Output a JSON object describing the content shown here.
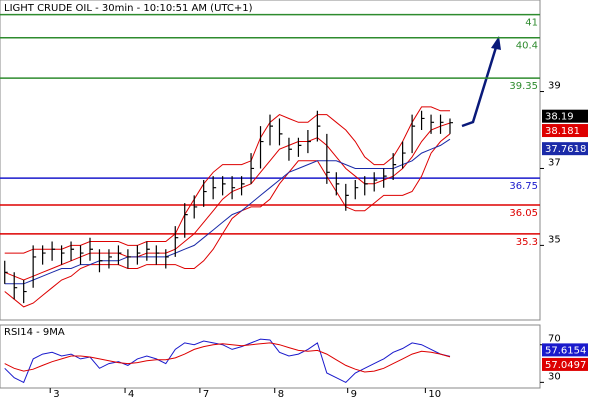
{
  "chart_data": [
    {
      "type": "ohlc",
      "title": "LIGHT CRUDE OIL - 30min - 10:10:51 AM (UTC+1)",
      "xlim": [
        -0.5,
        56.5
      ],
      "ylim": [
        33.06,
        41.38
      ],
      "yticks": [
        35,
        37,
        39
      ],
      "bar_color": "#000000",
      "high": [
        34.6,
        34.3,
        34.1,
        35.0,
        35.0,
        35.1,
        35.0,
        35.1,
        35.0,
        35.2,
        34.9,
        34.9,
        35.0,
        34.9,
        35.0,
        35.1,
        35.0,
        34.9,
        35.5,
        36.1,
        36.3,
        36.7,
        36.8,
        36.8,
        36.8,
        36.8,
        37.4,
        38.1,
        38.4,
        38.3,
        37.8,
        37.8,
        38.0,
        38.5,
        37.9,
        36.9,
        36.6,
        36.7,
        36.8,
        36.9,
        37.0,
        37.4,
        37.7,
        38.4,
        38.5,
        38.4,
        38.4,
        38.3
      ],
      "low": [
        34.0,
        33.6,
        33.5,
        33.9,
        34.5,
        34.6,
        34.5,
        34.6,
        34.5,
        34.6,
        34.3,
        34.4,
        34.5,
        34.4,
        34.5,
        34.6,
        34.5,
        34.4,
        34.7,
        35.2,
        35.7,
        36.0,
        36.2,
        36.3,
        36.2,
        36.3,
        36.6,
        37.0,
        37.6,
        37.6,
        37.2,
        37.3,
        37.4,
        37.7,
        36.6,
        36.3,
        35.9,
        36.2,
        36.3,
        36.4,
        36.5,
        36.7,
        37.0,
        37.4,
        38.0,
        37.9,
        37.9,
        37.9
      ],
      "close": [
        34.3,
        33.9,
        33.8,
        34.7,
        34.8,
        34.9,
        34.8,
        34.9,
        34.8,
        34.9,
        34.6,
        34.7,
        34.8,
        34.7,
        34.8,
        34.9,
        34.8,
        34.7,
        35.2,
        35.8,
        36.0,
        36.4,
        36.5,
        36.6,
        36.5,
        36.6,
        37.0,
        37.7,
        38.1,
        37.9,
        37.5,
        37.6,
        37.7,
        38.1,
        36.9,
        36.6,
        36.3,
        36.5,
        36.6,
        36.7,
        36.8,
        37.1,
        37.4,
        38.1,
        38.3,
        38.2,
        38.2,
        38.19
      ],
      "series": [
        {
          "color": "#dd0000",
          "values": [
            34.8,
            34.8,
            34.8,
            34.9,
            34.9,
            34.9,
            34.9,
            35.0,
            35.0,
            35.1,
            35.1,
            35.1,
            35.1,
            35.0,
            35.0,
            35.1,
            35.1,
            35.1,
            35.3,
            35.8,
            36.2,
            36.6,
            36.9,
            37.1,
            37.1,
            37.1,
            37.2,
            37.8,
            38.2,
            38.4,
            38.3,
            38.2,
            38.2,
            38.4,
            38.4,
            38.2,
            38.0,
            37.7,
            37.3,
            37.1,
            37.1,
            37.3,
            37.7,
            38.2,
            38.6,
            38.6,
            38.5,
            38.5
          ]
        },
        {
          "color": "#dd0000",
          "values": [
            34.3,
            34.2,
            34.1,
            34.2,
            34.3,
            34.4,
            34.5,
            34.6,
            34.7,
            34.8,
            34.8,
            34.8,
            34.8,
            34.7,
            34.7,
            34.8,
            34.8,
            34.8,
            34.9,
            35.1,
            35.3,
            35.6,
            35.9,
            36.2,
            36.4,
            36.5,
            36.6,
            36.9,
            37.2,
            37.5,
            37.6,
            37.7,
            37.7,
            37.8,
            37.6,
            37.3,
            37.0,
            36.8,
            36.6,
            36.6,
            36.7,
            36.8,
            37.0,
            37.3,
            37.7,
            38.0,
            38.1,
            38.181
          ]
        },
        {
          "color": "#dd0000",
          "values": [
            33.8,
            33.6,
            33.4,
            33.5,
            33.7,
            33.9,
            34.1,
            34.2,
            34.4,
            34.5,
            34.5,
            34.5,
            34.5,
            34.4,
            34.4,
            34.5,
            34.5,
            34.5,
            34.5,
            34.4,
            34.4,
            34.6,
            34.9,
            35.3,
            35.7,
            35.9,
            36.0,
            36.0,
            36.2,
            36.6,
            36.9,
            37.2,
            37.2,
            37.2,
            36.8,
            36.4,
            36.0,
            35.9,
            35.9,
            36.1,
            36.3,
            36.3,
            36.3,
            36.4,
            36.8,
            37.4,
            37.7,
            37.9
          ]
        },
        {
          "color": "#1a2aa8",
          "values": [
            34.0,
            34.0,
            34.0,
            34.1,
            34.2,
            34.3,
            34.4,
            34.4,
            34.5,
            34.5,
            34.6,
            34.6,
            34.6,
            34.7,
            34.7,
            34.7,
            34.7,
            34.7,
            34.8,
            34.9,
            35.0,
            35.2,
            35.4,
            35.6,
            35.8,
            35.9,
            36.1,
            36.3,
            36.5,
            36.7,
            36.9,
            37.0,
            37.1,
            37.2,
            37.2,
            37.2,
            37.1,
            37.0,
            37.0,
            37.0,
            37.0,
            37.0,
            37.1,
            37.2,
            37.4,
            37.5,
            37.6,
            37.7618
          ]
        }
      ],
      "levels": [
        {
          "value": 41,
          "color": "#2e8b2e"
        },
        {
          "value": 40.4,
          "color": "#2e8b2e"
        },
        {
          "value": 39.35,
          "color": "#2e8b2e"
        },
        {
          "value": 36.75,
          "color": "#1a1acc"
        },
        {
          "value": 36.05,
          "color": "#dd0000"
        },
        {
          "value": 35.3,
          "color": "#dd0000"
        }
      ]
    },
    {
      "type": "line",
      "title": "RSI14 - 9MA",
      "xlim": [
        -0.5,
        56.5
      ],
      "ylim": [
        24,
        91
      ],
      "yticks": [
        30,
        70
      ],
      "xticks": [
        {
          "value": 4.8,
          "label": "3"
        },
        {
          "value": 12.7,
          "label": "4"
        },
        {
          "value": 20.6,
          "label": "7"
        },
        {
          "value": 28.5,
          "label": "8"
        },
        {
          "value": 36.2,
          "label": "9"
        },
        {
          "value": 44.4,
          "label": "10"
        }
      ],
      "series": [
        {
          "color": "#1a1acc",
          "values": [
            45,
            35,
            30,
            55,
            60,
            62,
            58,
            60,
            55,
            57,
            45,
            50,
            52,
            48,
            55,
            58,
            55,
            50,
            65,
            72,
            70,
            74,
            72,
            70,
            65,
            68,
            72,
            76,
            75,
            62,
            58,
            60,
            65,
            72,
            40,
            35,
            30,
            40,
            45,
            50,
            55,
            62,
            66,
            72,
            70,
            65,
            60,
            57.6154
          ]
        },
        {
          "color": "#dd0000",
          "values": [
            50,
            45,
            42,
            44,
            48,
            52,
            55,
            58,
            58,
            57,
            55,
            53,
            51,
            50,
            51,
            53,
            54,
            54,
            56,
            60,
            65,
            68,
            70,
            71,
            70,
            69,
            70,
            71,
            72,
            70,
            67,
            64,
            63,
            64,
            60,
            54,
            48,
            44,
            41,
            42,
            45,
            50,
            55,
            60,
            63,
            62,
            60,
            57.0497
          ]
        }
      ]
    }
  ]
}
